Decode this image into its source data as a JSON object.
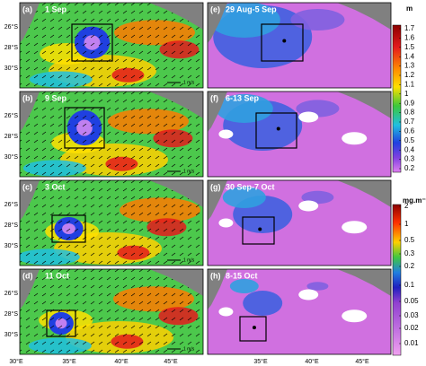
{
  "panels": [
    {
      "letter": "(a)",
      "date": "1 Sep"
    },
    {
      "letter": "(b)",
      "date": "9 Sep"
    },
    {
      "letter": "(c)",
      "date": "3 Oct"
    },
    {
      "letter": "(d)",
      "date": "11 Oct"
    },
    {
      "letter": "(e)",
      "date": "29 Aug-5 Sep"
    },
    {
      "letter": "(f)",
      "date": "6-13 Sep"
    },
    {
      "letter": "(g)",
      "date": "30 Sep-7 Oct"
    },
    {
      "letter": "(h)",
      "date": "8-15 Oct"
    }
  ],
  "lat_labels": [
    "26°S",
    "28°S",
    "30°S"
  ],
  "lon_labels": [
    "30°E",
    "35°E",
    "40°E",
    "45°E"
  ],
  "scale_label": "1 m/s",
  "colorbars": [
    {
      "unit": "m",
      "ticks": [
        "1.7",
        "1.6",
        "1.5",
        "1.4",
        "1.3",
        "1.2",
        "1.1",
        "1",
        "0.9",
        "0.8",
        "0.7",
        "0.6",
        "0.5",
        "0.4",
        "0.3",
        "0.2"
      ]
    },
    {
      "unit": "mg.m⁻³",
      "ticks": [
        "2",
        "1",
        "0.5",
        "0.3",
        "0.2",
        "0.1",
        "0.05",
        "0.03",
        "0.02",
        "0.01"
      ]
    }
  ]
}
